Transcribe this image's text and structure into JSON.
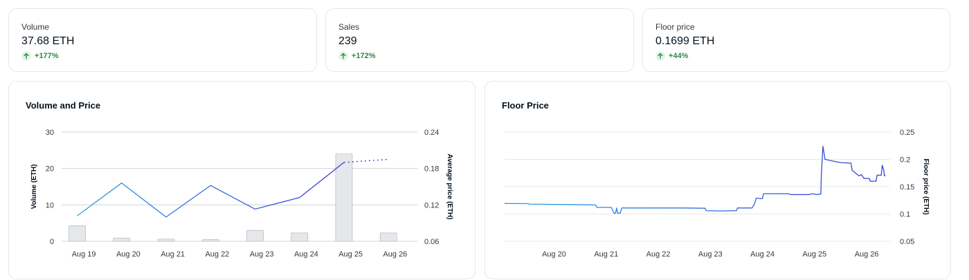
{
  "stats": [
    {
      "label": "Volume",
      "value": "37.68 ETH",
      "change": "+177%"
    },
    {
      "label": "Sales",
      "value": "239",
      "change": "+172%"
    },
    {
      "label": "Floor price",
      "value": "0.1699 ETH",
      "change": "+44%"
    }
  ],
  "colors": {
    "up": "#2a8a45",
    "bar": "#e5e7ea",
    "line_start": "#2aa3df",
    "line_end": "#3b3bd9",
    "grid": "#cfd3d8"
  },
  "chart_data": [
    {
      "type": "bar",
      "title": "Volume and Price",
      "ylabel": "Volume (ETH)",
      "y2label": "Average price (ETH)",
      "ylim": [
        0,
        30
      ],
      "y2lim": [
        0.06,
        0.24
      ],
      "yticks": [
        "0",
        "10",
        "20",
        "30"
      ],
      "y2ticks": [
        "0.06",
        "0.12",
        "0.18",
        "0.24"
      ],
      "categories": [
        "Aug 19",
        "Aug 20",
        "Aug 21",
        "Aug 22",
        "Aug 23",
        "Aug 24",
        "Aug 25",
        "Aug 26"
      ],
      "bars": [
        {
          "x": 18.85,
          "value": 4.3
        },
        {
          "x": 19.85,
          "value": 0.9
        },
        {
          "x": 20.85,
          "value": 0.6
        },
        {
          "x": 21.85,
          "value": 0.5
        },
        {
          "x": 22.85,
          "value": 3.0
        },
        {
          "x": 23.85,
          "value": 2.3
        },
        {
          "x": 24.85,
          "value": 24.0
        },
        {
          "x": 25.85,
          "value": 2.3
        }
      ],
      "price_line": [
        {
          "x": 18.85,
          "price": 0.102
        },
        {
          "x": 19.85,
          "price": 0.156
        },
        {
          "x": 20.85,
          "price": 0.1
        },
        {
          "x": 21.85,
          "price": 0.152
        },
        {
          "x": 22.85,
          "price": 0.113
        },
        {
          "x": 23.85,
          "price": 0.132
        },
        {
          "x": 24.85,
          "price": 0.19
        }
      ],
      "price_projection": [
        {
          "x": 24.85,
          "price": 0.19
        },
        {
          "x": 25.85,
          "price": 0.195
        }
      ]
    },
    {
      "type": "line",
      "title": "Floor Price",
      "ylabel": "Floor price (ETH)",
      "ylim": [
        0.05,
        0.25
      ],
      "yticks": [
        "0.05",
        "0.1",
        "0.15",
        "0.2",
        "0.25"
      ],
      "categories": [
        "Aug 20",
        "Aug 21",
        "Aug 22",
        "Aug 23",
        "Aug 24",
        "Aug 25",
        "Aug 26"
      ],
      "series": [
        {
          "x": 18.55,
          "y": 0.1192
        },
        {
          "x": 19.0,
          "y": 0.119
        },
        {
          "x": 19.03,
          "y": 0.118
        },
        {
          "x": 19.5,
          "y": 0.1175
        },
        {
          "x": 20.0,
          "y": 0.117
        },
        {
          "x": 20.3,
          "y": 0.1165
        },
        {
          "x": 20.32,
          "y": 0.112
        },
        {
          "x": 20.6,
          "y": 0.112
        },
        {
          "x": 20.65,
          "y": 0.1015
        },
        {
          "x": 20.68,
          "y": 0.1015
        },
        {
          "x": 20.7,
          "y": 0.111
        },
        {
          "x": 20.72,
          "y": 0.1015
        },
        {
          "x": 20.77,
          "y": 0.1015
        },
        {
          "x": 20.8,
          "y": 0.111
        },
        {
          "x": 21.2,
          "y": 0.111
        },
        {
          "x": 21.6,
          "y": 0.111
        },
        {
          "x": 21.95,
          "y": 0.111
        },
        {
          "x": 22.4,
          "y": 0.1105
        },
        {
          "x": 22.42,
          "y": 0.106
        },
        {
          "x": 22.7,
          "y": 0.1055
        },
        {
          "x": 22.95,
          "y": 0.106
        },
        {
          "x": 23.0,
          "y": 0.106
        },
        {
          "x": 23.02,
          "y": 0.111
        },
        {
          "x": 23.3,
          "y": 0.111
        },
        {
          "x": 23.35,
          "y": 0.119
        },
        {
          "x": 23.38,
          "y": 0.129
        },
        {
          "x": 23.5,
          "y": 0.128
        },
        {
          "x": 23.52,
          "y": 0.137
        },
        {
          "x": 23.8,
          "y": 0.137
        },
        {
          "x": 24.0,
          "y": 0.137
        },
        {
          "x": 24.05,
          "y": 0.1355
        },
        {
          "x": 24.4,
          "y": 0.1355
        },
        {
          "x": 24.45,
          "y": 0.137
        },
        {
          "x": 24.55,
          "y": 0.1355
        },
        {
          "x": 24.62,
          "y": 0.1365
        },
        {
          "x": 24.63,
          "y": 0.17
        },
        {
          "x": 24.66,
          "y": 0.224
        },
        {
          "x": 24.7,
          "y": 0.2
        },
        {
          "x": 24.8,
          "y": 0.198
        },
        {
          "x": 25.0,
          "y": 0.194
        },
        {
          "x": 25.2,
          "y": 0.193
        },
        {
          "x": 25.22,
          "y": 0.18
        },
        {
          "x": 25.35,
          "y": 0.17
        },
        {
          "x": 25.4,
          "y": 0.172
        },
        {
          "x": 25.45,
          "y": 0.165
        },
        {
          "x": 25.55,
          "y": 0.165
        },
        {
          "x": 25.57,
          "y": 0.16
        },
        {
          "x": 25.68,
          "y": 0.16
        },
        {
          "x": 25.7,
          "y": 0.171
        },
        {
          "x": 25.78,
          "y": 0.171
        },
        {
          "x": 25.8,
          "y": 0.189
        },
        {
          "x": 25.83,
          "y": 0.18
        },
        {
          "x": 25.84,
          "y": 0.17
        },
        {
          "x": 25.86,
          "y": 0.17
        }
      ]
    }
  ]
}
